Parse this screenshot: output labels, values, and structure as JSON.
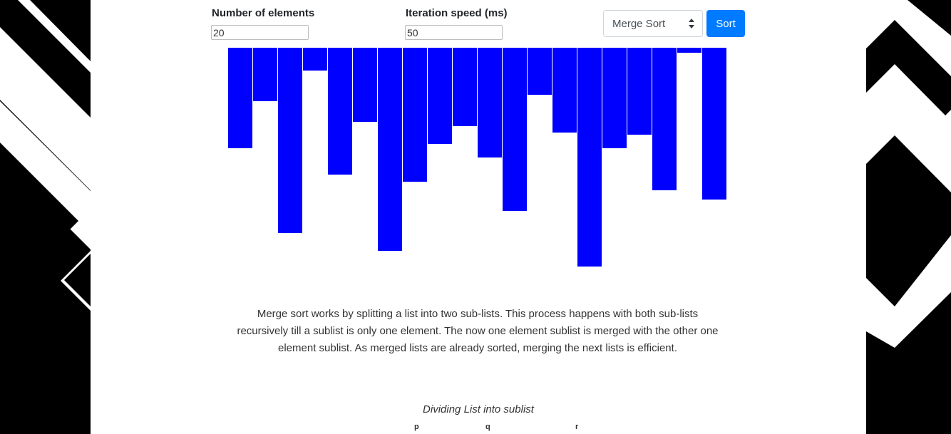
{
  "controls": {
    "elements_label": "Number of elements",
    "elements_value": "20",
    "speed_label": "Iteration speed (ms)",
    "speed_value": "50",
    "algorithm_selected": "Merge Sort",
    "sort_label": "Sort"
  },
  "bars": {
    "color": "#0000ff",
    "max_value": 307,
    "values": [
      141,
      75,
      260,
      32,
      178,
      104,
      285,
      188,
      135,
      110,
      154,
      229,
      66,
      119,
      307,
      141,
      122,
      200,
      7,
      213
    ]
  },
  "description": "Merge sort works by splitting a list into two sub-lists. This process happens with both sub-lists recursively till a sublist is only one element. The now one element sublist is merged with the other one element sublist. As merged lists are already sorted, merging the next lists is efficient.",
  "diagram": {
    "caption": "Dividing List into sublist",
    "pointers": [
      "p",
      "q",
      "r"
    ]
  },
  "theme": {
    "accent": "#007bff",
    "decoration": "#000000"
  }
}
